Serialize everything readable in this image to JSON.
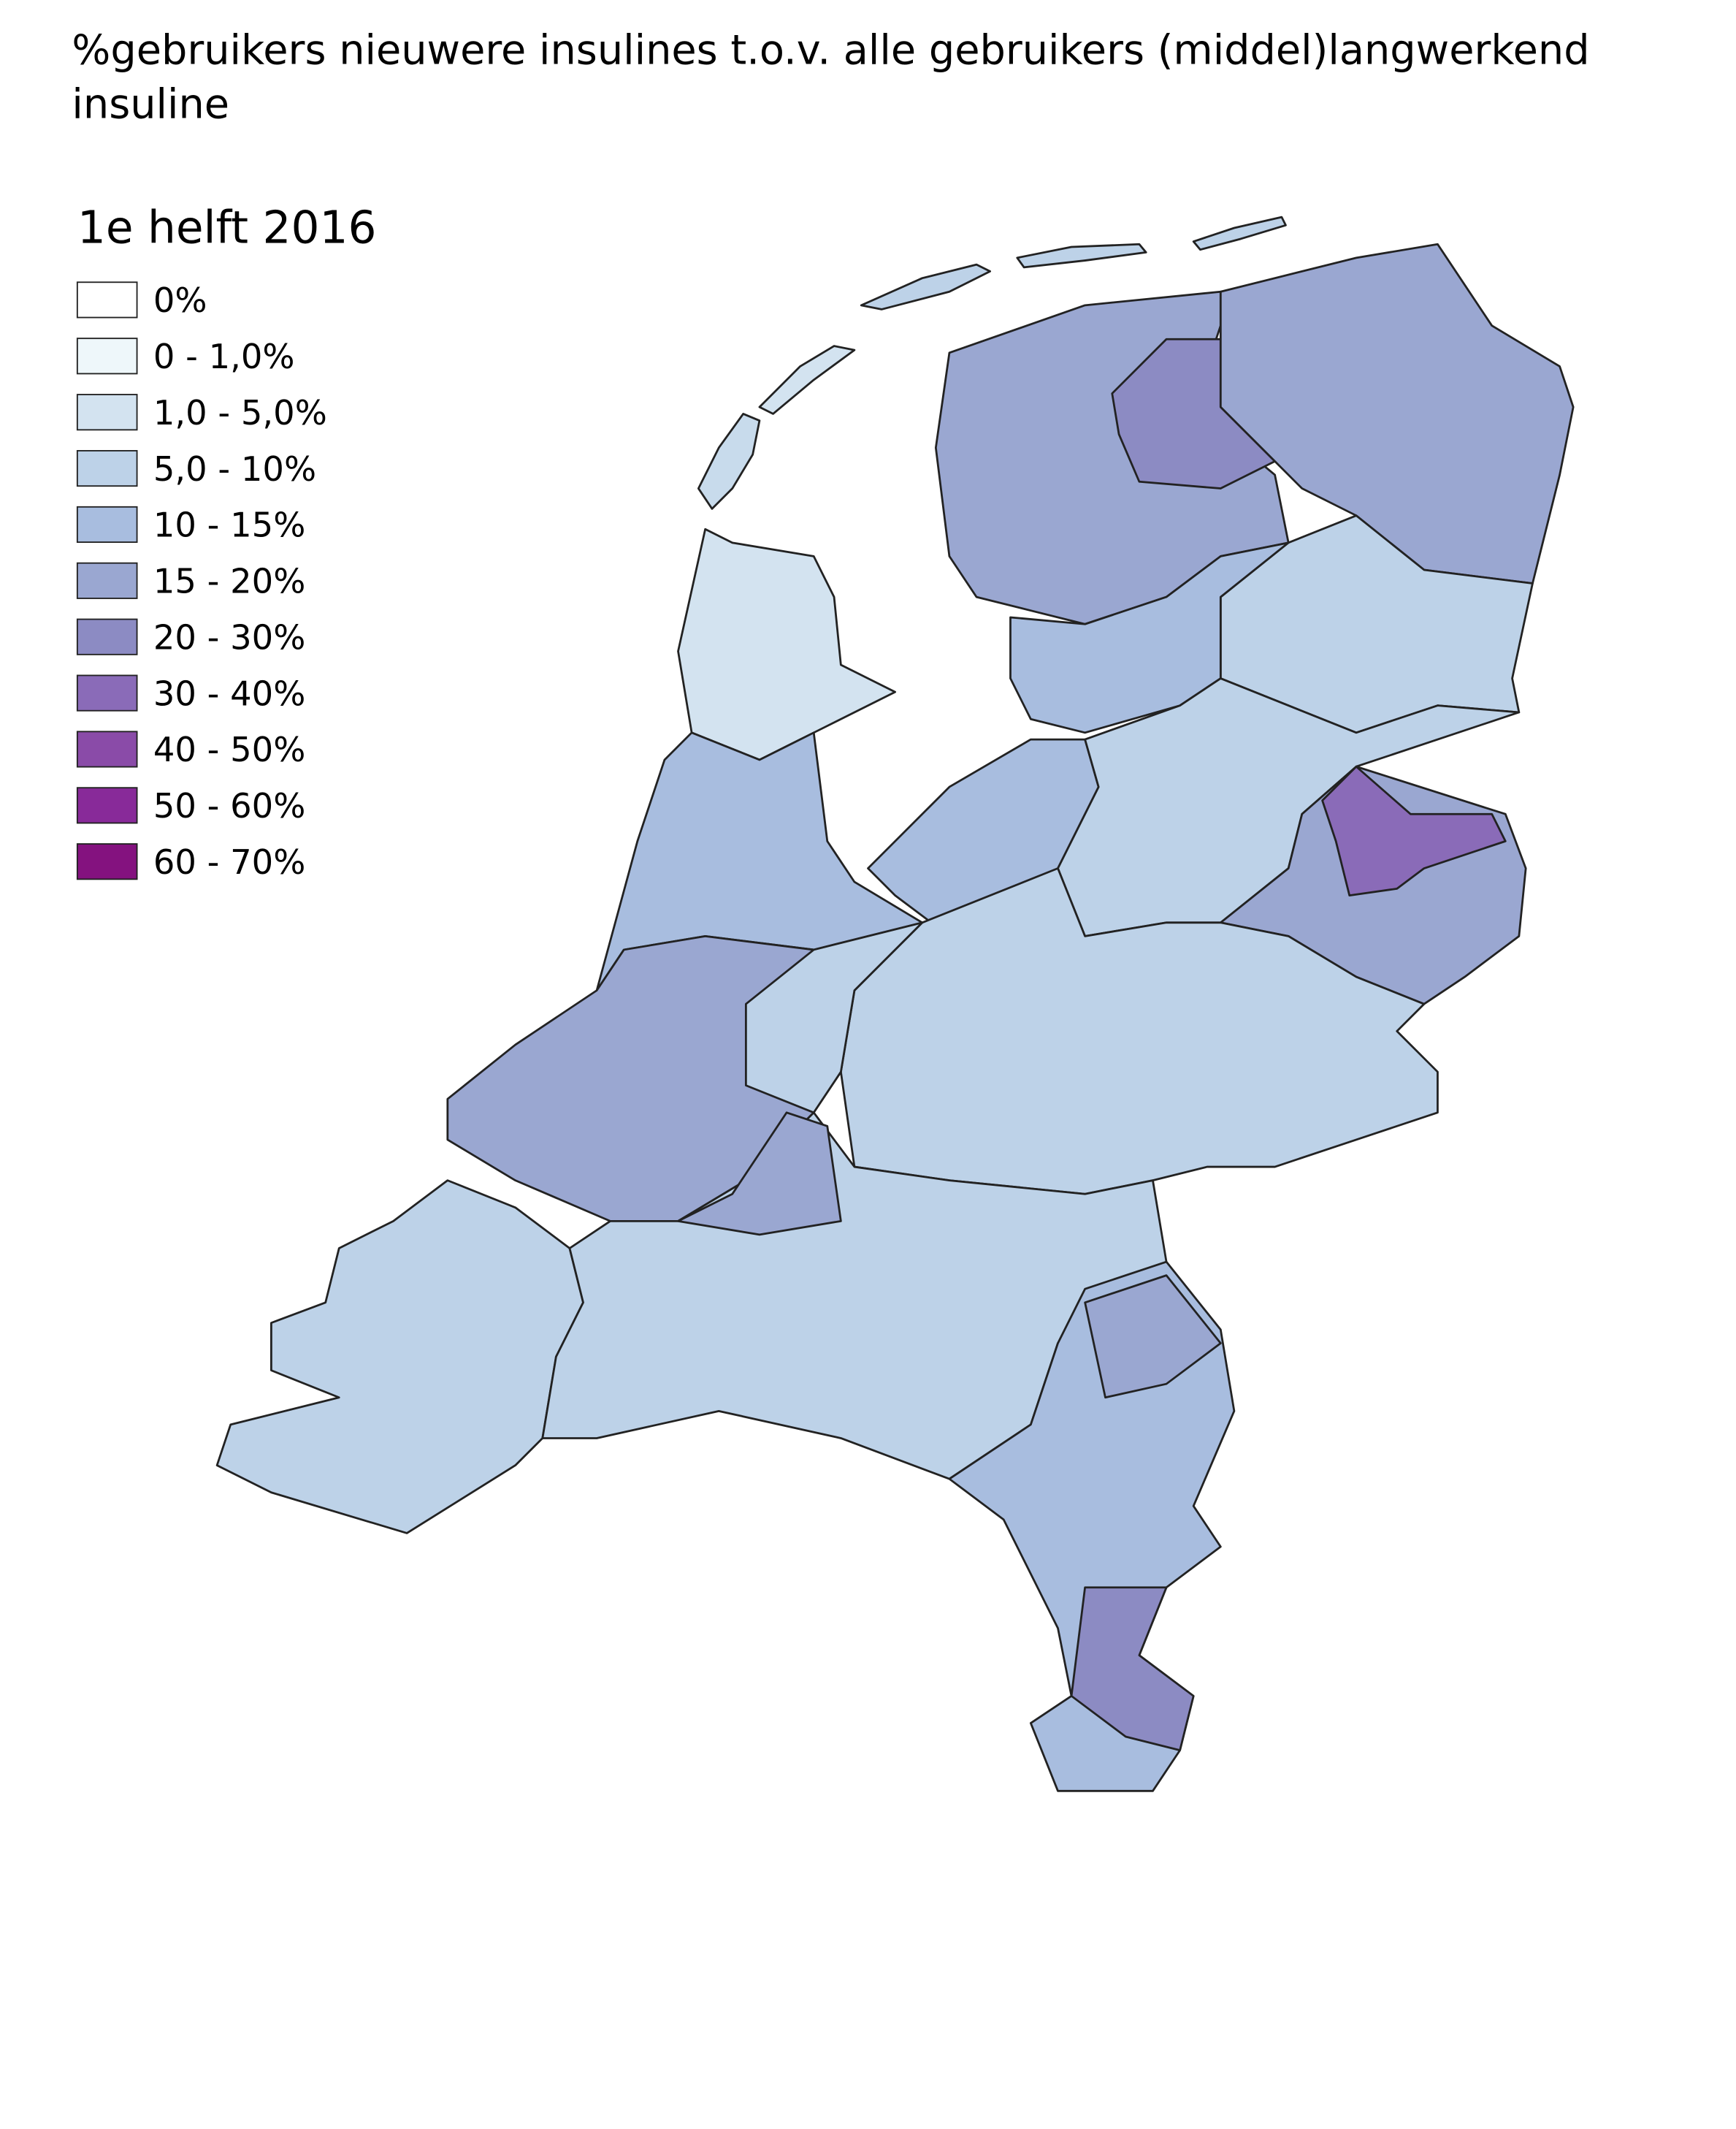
{
  "title": "%gebruikers nieuwere insulines t.o.v. alle gebruikers (middel)langwerkend insuline",
  "legend": {
    "title": "1e helft 2016",
    "items": [
      {
        "label": "0%",
        "color": "#ffffff"
      },
      {
        "label": "0 - 1,0%",
        "color": "#eef7fa"
      },
      {
        "label": "1,0 - 5,0%",
        "color": "#d3e3f0"
      },
      {
        "label": "5,0 - 10%",
        "color": "#bdd2e8"
      },
      {
        "label": "10 - 15%",
        "color": "#a8bddf"
      },
      {
        "label": "15 - 20%",
        "color": "#9aa7d1"
      },
      {
        "label": "20 - 30%",
        "color": "#8c8bc3"
      },
      {
        "label": "30 - 40%",
        "color": "#8a6bb8"
      },
      {
        "label": "40 - 50%",
        "color": "#8a4ba8"
      },
      {
        "label": "50 - 60%",
        "color": "#882a99"
      },
      {
        "label": "60 - 70%",
        "color": "#84127f"
      }
    ]
  }
}
